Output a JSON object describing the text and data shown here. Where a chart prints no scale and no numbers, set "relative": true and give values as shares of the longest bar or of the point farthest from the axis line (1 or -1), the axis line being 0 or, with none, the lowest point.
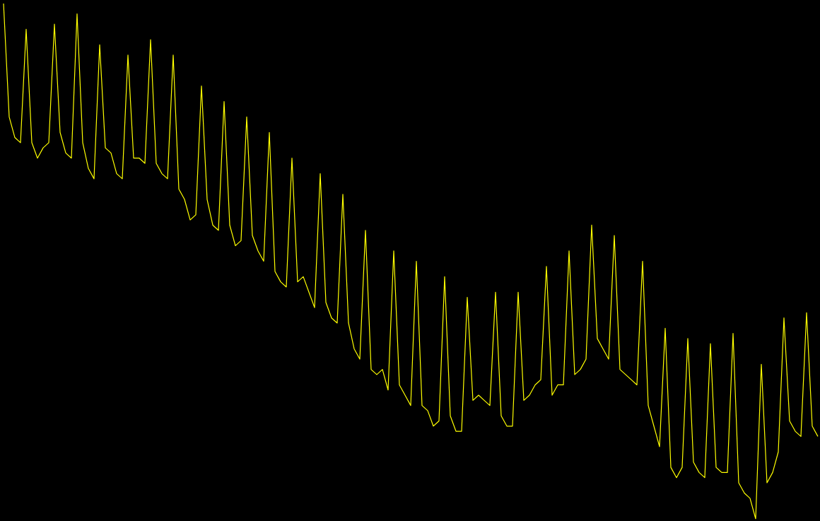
{
  "chart_data": {
    "type": "line",
    "relative": true,
    "categories": [
      null,
      null,
      null,
      null,
      null,
      null,
      null,
      null,
      null,
      null,
      null,
      null,
      null,
      null,
      null,
      null,
      null,
      null,
      null,
      null,
      null,
      null,
      null,
      null,
      null,
      null,
      null,
      null,
      null,
      null,
      null,
      null,
      null,
      null,
      null,
      null,
      null,
      null,
      null,
      null,
      null,
      null,
      null,
      null,
      null,
      null,
      null,
      null,
      null,
      null,
      null,
      null,
      null,
      null,
      null,
      null,
      null,
      null,
      null,
      null,
      null,
      null,
      null,
      null,
      null,
      null,
      null,
      null,
      null,
      null,
      null,
      null,
      null,
      null,
      null,
      null,
      null,
      null,
      null,
      null,
      null,
      null,
      null,
      null,
      null,
      null,
      null,
      null,
      null,
      null,
      null,
      null,
      null,
      null,
      null,
      null,
      null,
      null,
      null,
      null,
      null,
      null,
      null,
      null,
      null,
      null,
      null,
      null,
      null,
      null,
      null,
      null,
      null,
      null,
      null,
      null,
      null,
      null,
      null,
      null,
      null,
      null,
      null,
      null,
      null,
      null,
      null,
      null,
      null,
      null,
      null,
      null,
      null,
      null,
      null,
      null,
      null,
      null,
      null,
      null,
      null,
      null,
      null,
      null,
      null
    ],
    "series": [
      {
        "color": "#ffff00",
        "values": [
          1.0,
          0.78,
          0.74,
          0.73,
          0.95,
          0.73,
          0.7,
          0.72,
          0.73,
          0.96,
          0.75,
          0.71,
          0.7,
          0.98,
          0.73,
          0.68,
          0.66,
          0.92,
          0.72,
          0.71,
          0.67,
          0.66,
          0.9,
          0.7,
          0.7,
          0.69,
          0.93,
          0.69,
          0.67,
          0.66,
          0.9,
          0.64,
          0.62,
          0.58,
          0.59,
          0.84,
          0.62,
          0.57,
          0.56,
          0.81,
          0.57,
          0.53,
          0.54,
          0.78,
          0.55,
          0.52,
          0.5,
          0.75,
          0.48,
          0.46,
          0.45,
          0.7,
          0.46,
          0.47,
          0.44,
          0.41,
          0.67,
          0.42,
          0.39,
          0.38,
          0.63,
          0.38,
          0.33,
          0.31,
          0.56,
          0.29,
          0.28,
          0.29,
          0.25,
          0.52,
          0.26,
          0.24,
          0.22,
          0.5,
          0.22,
          0.21,
          0.18,
          0.19,
          0.47,
          0.2,
          0.17,
          0.17,
          0.43,
          0.23,
          0.24,
          0.23,
          0.22,
          0.44,
          0.2,
          0.18,
          0.18,
          0.44,
          0.23,
          0.24,
          0.26,
          0.27,
          0.49,
          0.24,
          0.26,
          0.26,
          0.52,
          0.28,
          0.29,
          0.31,
          0.57,
          0.35,
          0.33,
          0.31,
          0.55,
          0.29,
          0.28,
          0.27,
          0.26,
          0.5,
          0.22,
          0.18,
          0.14,
          0.37,
          0.1,
          0.08,
          0.1,
          0.35,
          0.11,
          0.09,
          0.08,
          0.34,
          0.1,
          0.09,
          0.09,
          0.36,
          0.07,
          0.05,
          0.04,
          0.0,
          0.3,
          0.07,
          0.09,
          0.13,
          0.39,
          0.19,
          0.17,
          0.16,
          0.4,
          0.18,
          0.16
        ]
      }
    ]
  }
}
